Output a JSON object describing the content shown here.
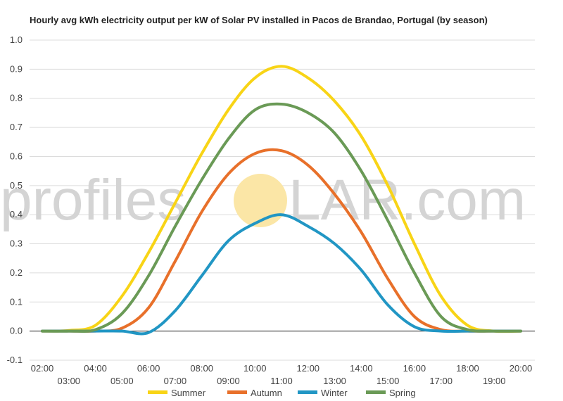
{
  "watermark": {
    "text_left": "profiles",
    "text_right": "LAR.com",
    "sun_color": "#fbe6a6"
  },
  "chart_data": {
    "type": "line",
    "title": "Hourly avg kWh electricity output per kW of Solar PV installed in Pacos de Brandao, Portugal (by season)",
    "xlabel": "",
    "ylabel": "",
    "x": [
      "02:00",
      "03:00",
      "04:00",
      "05:00",
      "06:00",
      "07:00",
      "08:00",
      "09:00",
      "10:00",
      "11:00",
      "12:00",
      "13:00",
      "14:00",
      "15:00",
      "16:00",
      "17:00",
      "18:00",
      "19:00",
      "20:00"
    ],
    "ylim": [
      -0.1,
      1.0
    ],
    "yticks": [
      "-0.1",
      "0.0",
      "0.1",
      "0.2",
      "0.3",
      "0.4",
      "0.5",
      "0.6",
      "0.7",
      "0.8",
      "0.9",
      "1.0"
    ],
    "grid": true,
    "legend_position": "bottom",
    "series": [
      {
        "name": "Summer",
        "color": "#f8d416",
        "values": [
          0,
          0.002,
          0.02,
          0.12,
          0.27,
          0.44,
          0.61,
          0.76,
          0.87,
          0.91,
          0.87,
          0.79,
          0.67,
          0.5,
          0.3,
          0.12,
          0.02,
          0,
          0
        ]
      },
      {
        "name": "Autumn",
        "color": "#e8702a",
        "values": [
          0,
          0,
          0,
          0.01,
          0.08,
          0.24,
          0.41,
          0.54,
          0.61,
          0.62,
          0.57,
          0.47,
          0.34,
          0.18,
          0.05,
          0.005,
          0,
          0,
          0
        ]
      },
      {
        "name": "Winter",
        "color": "#2196c4",
        "values": [
          0,
          0,
          0,
          0,
          -0.005,
          0.07,
          0.19,
          0.31,
          0.37,
          0.4,
          0.36,
          0.3,
          0.21,
          0.09,
          0.015,
          0,
          0,
          0,
          0
        ]
      },
      {
        "name": "Spring",
        "color": "#6a9a56",
        "values": [
          0,
          0,
          0.005,
          0.06,
          0.19,
          0.36,
          0.52,
          0.66,
          0.76,
          0.78,
          0.75,
          0.68,
          0.55,
          0.38,
          0.2,
          0.05,
          0.005,
          0,
          0
        ]
      }
    ]
  }
}
